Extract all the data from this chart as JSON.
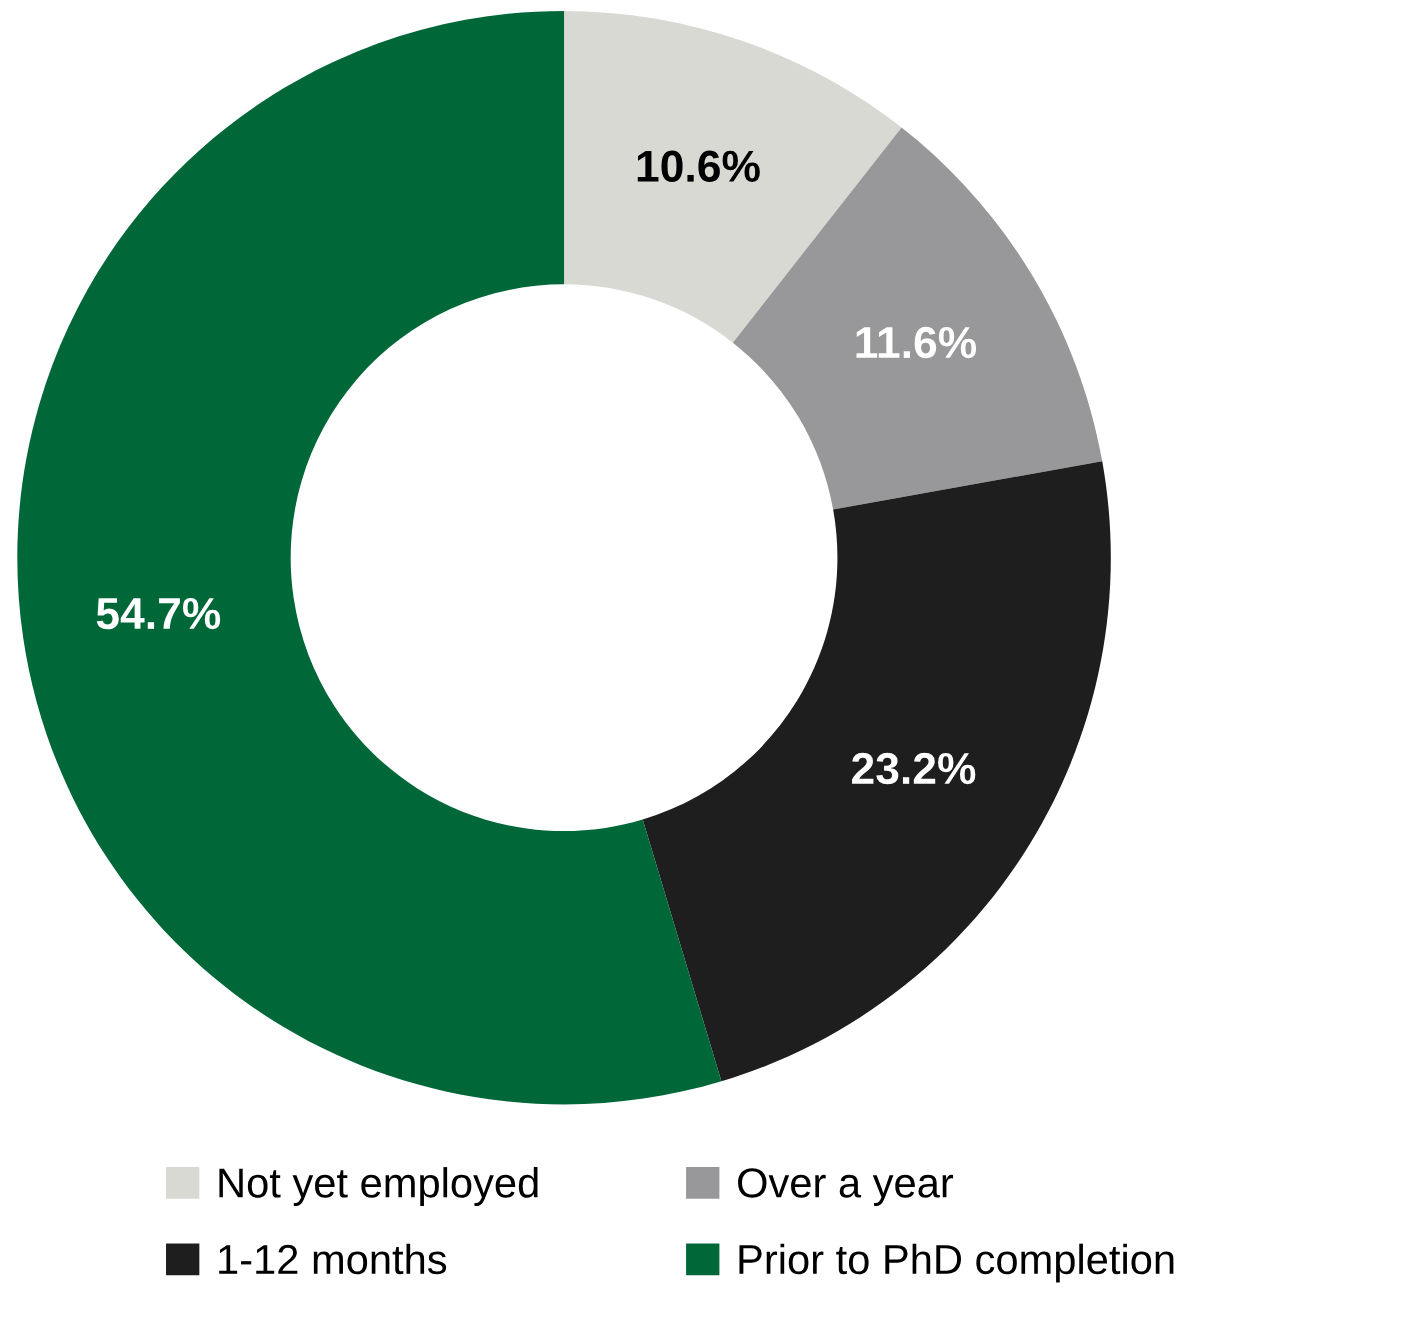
{
  "chart_data": {
    "type": "donut",
    "categories": [
      "Not yet employed",
      "Over a year",
      "1-12 months",
      "Prior to PhD completion"
    ],
    "values": [
      10.6,
      11.6,
      23.2,
      54.7
    ],
    "colors": [
      "#d9d9d4",
      "#98989a",
      "#1e1e1e",
      "#006838"
    ],
    "value_labels": [
      "10.6%",
      "11.6%",
      "23.2%",
      "54.7%"
    ],
    "legend": "bottom"
  }
}
